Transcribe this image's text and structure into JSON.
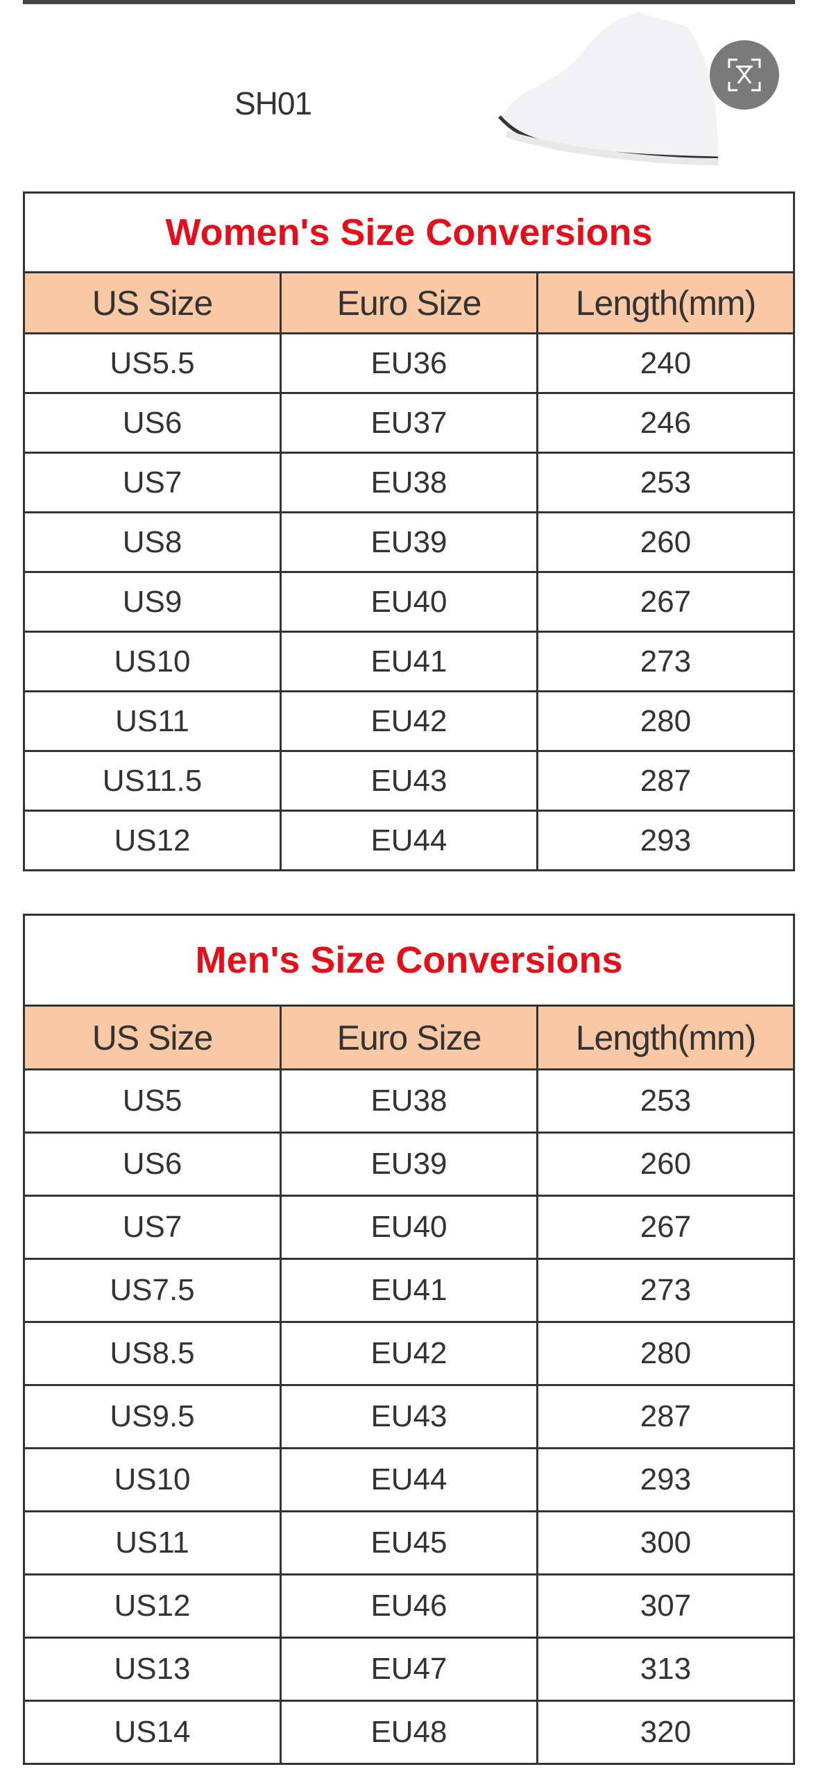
{
  "model": "SH01",
  "expand_icon": "expand-scan-icon",
  "colors": {
    "title": "#e3101c",
    "header_bg": "#f9c9a6",
    "border": "#333333"
  },
  "columns": [
    "US Size",
    "Euro Size",
    "Length(mm)"
  ],
  "women": {
    "title": "Women's Size Conversions",
    "rows": [
      [
        "US5.5",
        "EU36",
        "240"
      ],
      [
        "US6",
        "EU37",
        "246"
      ],
      [
        "US7",
        "EU38",
        "253"
      ],
      [
        "US8",
        "EU39",
        "260"
      ],
      [
        "US9",
        "EU40",
        "267"
      ],
      [
        "US10",
        "EU41",
        "273"
      ],
      [
        "US11",
        "EU42",
        "280"
      ],
      [
        "US11.5",
        "EU43",
        "287"
      ],
      [
        "US12",
        "EU44",
        "293"
      ]
    ]
  },
  "men": {
    "title": "Men's Size Conversions",
    "rows": [
      [
        "US5",
        "EU38",
        "253"
      ],
      [
        "US6",
        "EU39",
        "260"
      ],
      [
        "US7",
        "EU40",
        "267"
      ],
      [
        "US7.5",
        "EU41",
        "273"
      ],
      [
        "US8.5",
        "EU42",
        "280"
      ],
      [
        "US9.5",
        "EU43",
        "287"
      ],
      [
        "US10",
        "EU44",
        "293"
      ],
      [
        "US11",
        "EU45",
        "300"
      ],
      [
        "US12",
        "EU46",
        "307"
      ],
      [
        "US13",
        "EU47",
        "313"
      ],
      [
        "US14",
        "EU48",
        "320"
      ]
    ]
  }
}
